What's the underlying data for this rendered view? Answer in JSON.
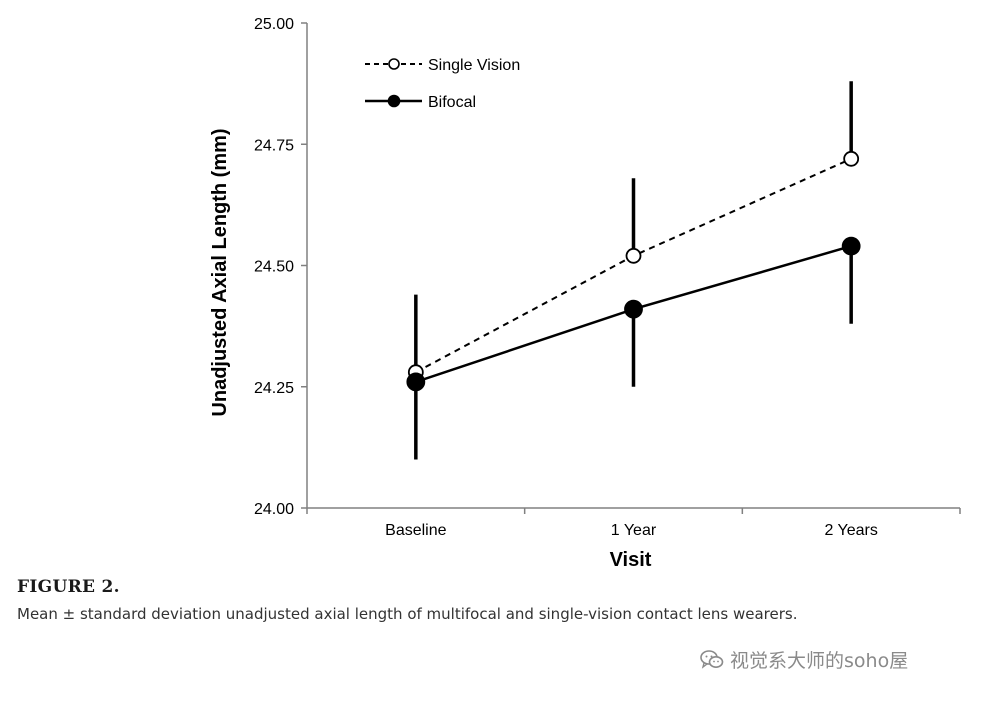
{
  "chart_data": {
    "type": "line",
    "title": "",
    "xlabel": "Visit",
    "ylabel": "Unadjusted Axial Length (mm)",
    "categories": [
      "Baseline",
      "1 Year",
      "2 Years"
    ],
    "ylim": [
      24.0,
      25.0
    ],
    "yticks": [
      "24.00",
      "24.25",
      "24.50",
      "24.75",
      "25.00"
    ],
    "ytick_values": [
      24.0,
      24.25,
      24.5,
      24.75,
      25.0
    ],
    "legend_position": "top-left",
    "series": [
      {
        "name": "Single Vision",
        "style": "dashed",
        "marker": "open-circle",
        "values": [
          24.28,
          24.52,
          24.72
        ],
        "error_upper": [
          24.44,
          24.68,
          24.88
        ],
        "error_lower": [
          24.28,
          24.52,
          24.72
        ]
      },
      {
        "name": "Bifocal",
        "style": "solid",
        "marker": "filled-circle",
        "values": [
          24.26,
          24.41,
          24.54
        ],
        "error_upper": [
          24.26,
          24.41,
          24.54
        ],
        "error_lower": [
          24.1,
          24.25,
          24.38
        ]
      }
    ]
  },
  "figure": {
    "label": "FIGURE 2.",
    "caption": "Mean ± standard deviation unadjusted axial length of multifocal and single-vision contact lens wearers."
  },
  "watermark": {
    "text": "视觉系大师的soho屋",
    "icon": "wechat-icon"
  },
  "colors": {
    "line": "#000000",
    "axis": "#808080",
    "text": "#000000"
  }
}
